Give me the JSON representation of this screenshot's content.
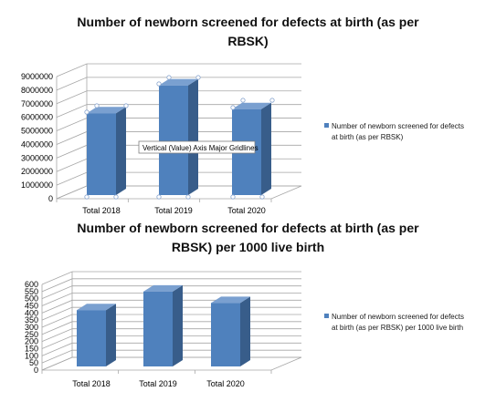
{
  "charts": [
    {
      "title_line1": "Number of newborn screened for defects at birth (as per",
      "title_line2": "RBSK)"
    },
    {
      "title_line1": "Number of newborn screened for defects at birth (as per",
      "title_line2": "RBSK) per 1000 live birth"
    }
  ],
  "tooltip": "Vertical (Value) Axis Major Gridlines",
  "colors": {
    "bar_front": "#4f81bd",
    "bar_side": "#385d8a",
    "bar_top": "#7aa0d0",
    "grid": "#a6a6a6"
  },
  "chart_data": [
    {
      "type": "bar",
      "categories": [
        "Total 2018",
        "Total 2019",
        "Total 2020"
      ],
      "series": [
        {
          "name": "Number of newborn screened for defects at birth (as per RBSK)",
          "values": [
            6300000,
            8350000,
            6600000
          ]
        }
      ],
      "ylim": [
        0,
        9000000
      ],
      "yticks": [
        "0",
        "1000000",
        "2000000",
        "3000000",
        "4000000",
        "5000000",
        "6000000",
        "7000000",
        "8000000",
        "9000000"
      ],
      "grid": true,
      "legend": "right",
      "title": "Number of newborn screened for defects at birth (as per RBSK)"
    },
    {
      "type": "bar",
      "categories": [
        "Total 2018",
        "Total 2019",
        "Total 2020"
      ],
      "series": [
        {
          "name": "Number of newborn screened for defects at birth (as per RBSK) per 1000 live birth",
          "values": [
            420,
            550,
            470
          ]
        }
      ],
      "ylim": [
        0,
        600
      ],
      "yticks": [
        "0",
        "50",
        "100",
        "150",
        "200",
        "250",
        "300",
        "350",
        "400",
        "450",
        "500",
        "550",
        "600"
      ],
      "grid": true,
      "legend": "right",
      "title": "Number of newborn screened for defects at birth (as per RBSK) per 1000 live birth"
    }
  ]
}
